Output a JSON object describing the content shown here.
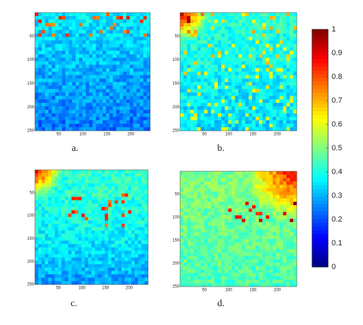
{
  "axes": {
    "xlim": [
      0,
      240
    ],
    "ylim": [
      0,
      250
    ],
    "xticks": [
      50,
      100,
      150,
      200
    ],
    "yticks": [
      50,
      100,
      150,
      200,
      250
    ]
  },
  "panels": [
    {
      "label": "a."
    },
    {
      "label": "b."
    },
    {
      "label": "c."
    },
    {
      "label": "d."
    }
  ],
  "colorbar": {
    "lim": [
      0,
      1
    ],
    "ticks": [
      0,
      0.1,
      0.2,
      0.3,
      0.4,
      0.5,
      0.6,
      0.7,
      0.8,
      0.9,
      1
    ]
  }
}
